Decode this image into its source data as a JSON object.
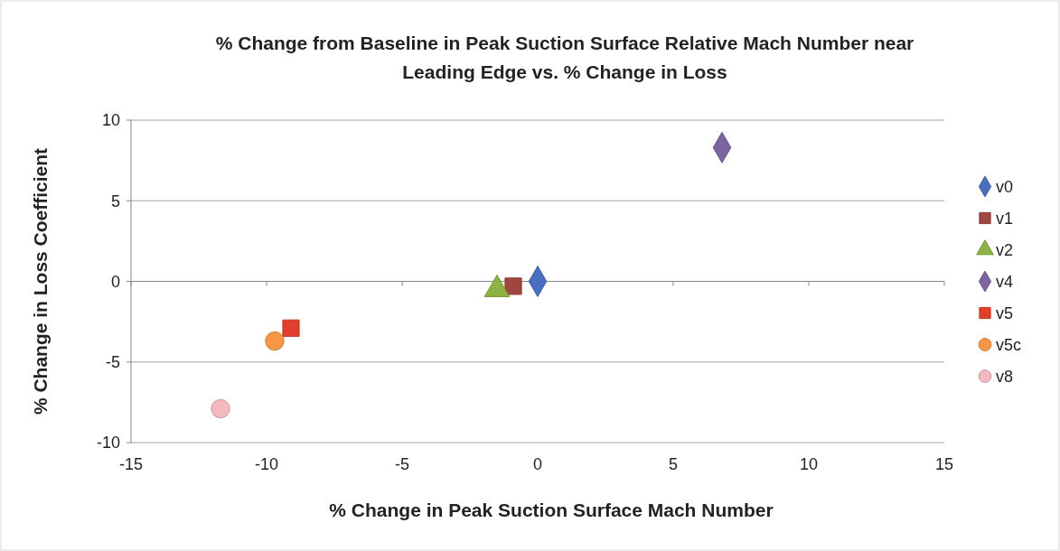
{
  "chart_data": {
    "type": "scatter",
    "title": "% Change from Baseline in Peak Suction Surface Relative Mach Number near Leading Edge vs. % Change in Loss",
    "xlabel": "% Change in Peak Suction Surface Mach Number",
    "ylabel": "% Change in Loss Coefficient",
    "xlim": [
      -15,
      15
    ],
    "xticks": [
      -15,
      -10,
      -5,
      0,
      5,
      10,
      15
    ],
    "ylim": [
      -10,
      10
    ],
    "yticks": [
      -10,
      -5,
      0,
      5,
      10
    ],
    "grid": "y",
    "legend": "right",
    "series": [
      {
        "name": "v0",
        "color": "#4a6fc0",
        "marker": "diamond",
        "x": [
          0
        ],
        "values": [
          0
        ]
      },
      {
        "name": "v1",
        "color": "#a0463f",
        "marker": "square",
        "x": [
          -0.9
        ],
        "values": [
          -0.3
        ]
      },
      {
        "name": "v2",
        "color": "#8db243",
        "marker": "triangle",
        "x": [
          -1.5
        ],
        "values": [
          -0.5
        ]
      },
      {
        "name": "v4",
        "color": "#7b64a0",
        "marker": "diamond",
        "x": [
          6.8
        ],
        "values": [
          8.3
        ]
      },
      {
        "name": "v5",
        "color": "#e0402a",
        "marker": "square",
        "x": [
          -9.1
        ],
        "values": [
          -2.9
        ]
      },
      {
        "name": "v5c",
        "color": "#f79646",
        "marker": "circle",
        "x": [
          -9.7
        ],
        "values": [
          -3.7
        ]
      },
      {
        "name": "v8",
        "color": "#f4b8c0",
        "marker": "circle",
        "x": [
          -11.7
        ],
        "values": [
          -7.9
        ]
      }
    ]
  }
}
